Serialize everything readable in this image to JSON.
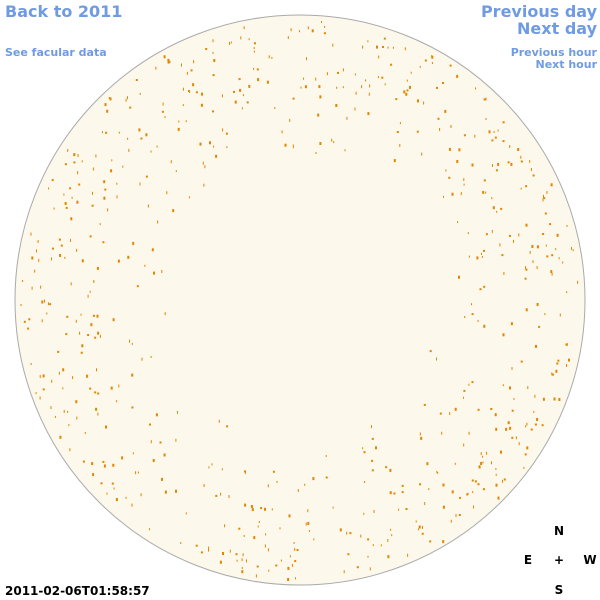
{
  "nav": {
    "back": "Back to 2011",
    "facular": "See facular data",
    "previous_day": "Previous day",
    "next_day": "Next day",
    "previous_hour": "Previous hour",
    "next_hour": "Next hour"
  },
  "timestamp": "2011-02-06T01:58:57",
  "compass": {
    "north": "N",
    "east": "E",
    "center": "+",
    "west": "W",
    "south": "S"
  }
}
